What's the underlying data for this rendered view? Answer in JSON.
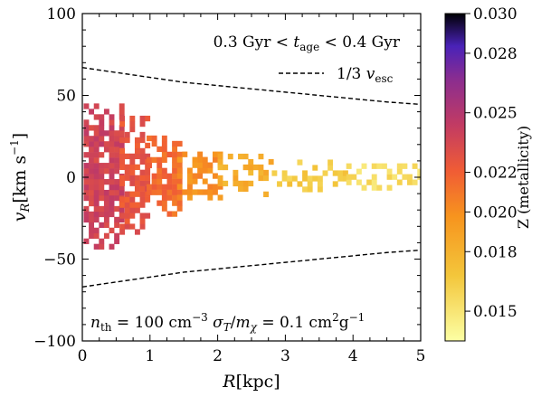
{
  "chart_data": {
    "type": "heatmap",
    "xlabel": "R[kpc]",
    "ylabel": "v_R [km s^-1]",
    "xlim": [
      0,
      5
    ],
    "ylim": [
      -100,
      100
    ],
    "x_ticks": [
      0,
      1,
      2,
      3,
      4,
      5
    ],
    "y_ticks": [
      -100,
      -50,
      0,
      50,
      100
    ],
    "annotations": {
      "age_range": "0.3 Gyr < t_age < 0.4 Gyr",
      "legend_line": "1/3 v_esc",
      "params": "n_th = 100 cm^-3   σ_T/m_χ = 0.1 cm^2 g^-1"
    },
    "dashed_curve": {
      "name": "1/3 v_esc",
      "x": [
        0,
        0.5,
        1,
        1.5,
        2,
        2.5,
        3,
        3.5,
        4,
        4.5,
        5
      ],
      "y": [
        67,
        64,
        61,
        58,
        56,
        54,
        52,
        50,
        48,
        46,
        44.5
      ]
    },
    "colorbar": {
      "label": "Z (metallicity)",
      "range": [
        0.0135,
        0.03
      ],
      "ticks": [
        0.015,
        0.018,
        0.02,
        0.022,
        0.025,
        0.028,
        0.03
      ],
      "tick_labels": [
        "0.015",
        "0.018",
        "0.020",
        "0.022",
        "0.025",
        "0.028",
        "0.030"
      ],
      "colormap": "inferno_r"
    },
    "zones": [
      {
        "xmin": 0.02,
        "xmax": 0.55,
        "yspread": 44,
        "z": 0.0238,
        "prob": 0.85
      },
      {
        "xmin": 0.55,
        "xmax": 0.95,
        "yspread": 35,
        "z": 0.0226,
        "prob": 0.72
      },
      {
        "xmin": 0.95,
        "xmax": 1.4,
        "yspread": 24,
        "z": 0.0215,
        "prob": 0.75
      },
      {
        "xmin": 1.4,
        "xmax": 2.0,
        "yspread": 14,
        "z": 0.02,
        "prob": 0.6
      },
      {
        "xmin": 2.0,
        "xmax": 2.8,
        "yspread": 12,
        "z": 0.0182,
        "prob": 0.5
      },
      {
        "xmin": 2.8,
        "xmax": 3.9,
        "yspread": 9,
        "z": 0.0165,
        "prob": 0.45
      },
      {
        "xmin": 3.9,
        "xmax": 5.0,
        "yspread": 8,
        "z": 0.0155,
        "prob": 0.5
      }
    ]
  }
}
